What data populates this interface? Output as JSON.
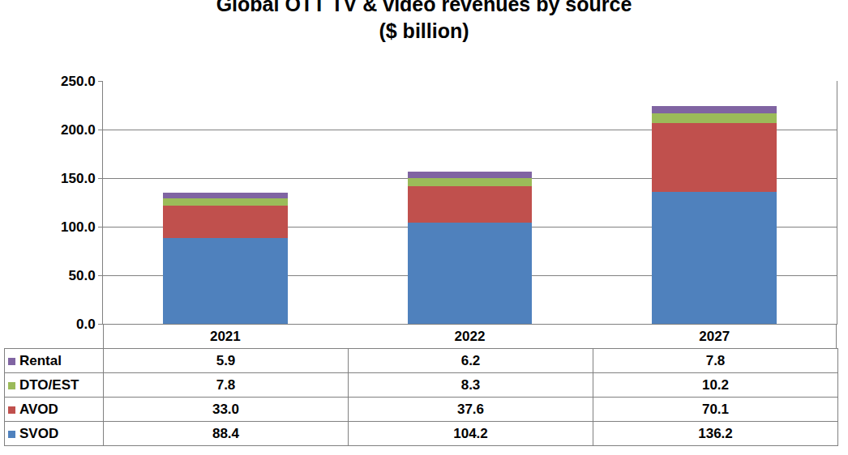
{
  "chart_data": {
    "type": "bar",
    "stacked": true,
    "title": "Global OTT TV & video revenues by source",
    "subtitle": "($ billion)",
    "categories": [
      "2021",
      "2022",
      "2027"
    ],
    "series": [
      {
        "name": "SVOD",
        "color": "#4f81bd",
        "values": [
          88.4,
          104.2,
          136.2
        ]
      },
      {
        "name": "AVOD",
        "color": "#c0504d",
        "values": [
          33.0,
          37.6,
          70.1
        ]
      },
      {
        "name": "DTO/EST",
        "color": "#9bbb59",
        "values": [
          7.8,
          8.3,
          10.2
        ]
      },
      {
        "name": "Rental",
        "color": "#8064a2",
        "values": [
          5.9,
          6.2,
          7.8
        ]
      }
    ],
    "value_labels": {
      "SVOD": [
        "88.4",
        "104.2",
        "136.2"
      ],
      "AVOD": [
        "33.0",
        "37.6",
        "70.1"
      ],
      "DTO/EST": [
        "7.8",
        "8.3",
        "10.2"
      ],
      "Rental": [
        "5.9",
        "6.2",
        "7.8"
      ]
    },
    "ylim": [
      0,
      250
    ],
    "yticks": [
      {
        "value": 0,
        "label": "0.0"
      },
      {
        "value": 50,
        "label": "50.0"
      },
      {
        "value": 100,
        "label": "100.0"
      },
      {
        "value": 150,
        "label": "150.0"
      },
      {
        "value": 200,
        "label": "200.0"
      },
      {
        "value": 250,
        "label": "250.0"
      }
    ],
    "grid": true
  }
}
